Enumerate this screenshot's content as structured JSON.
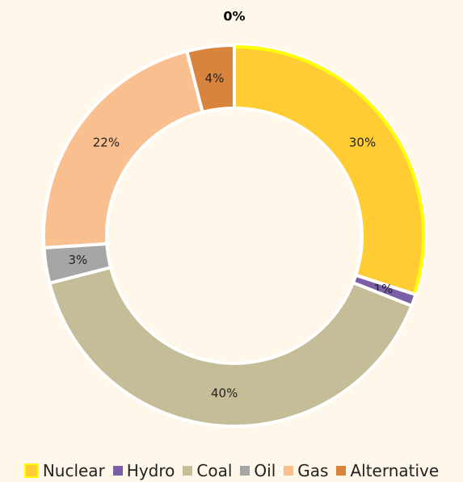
{
  "chart_data": {
    "type": "donut",
    "categories": [
      "Nuclear",
      "Hydro",
      "Coal",
      "Oil",
      "Gas",
      "Alternative",
      null
    ],
    "values": [
      30,
      1,
      40,
      3,
      22,
      4,
      0
    ],
    "value_labels": [
      "30%",
      "1%",
      "40%",
      "3%",
      "22%",
      "4%",
      "0%"
    ],
    "colors": [
      "#ffcd33",
      "#7a5fa8",
      "#c5bd98",
      "#a6a6a6",
      "#f9bf8f",
      "#d9843d",
      null
    ],
    "highlight": "Nuclear"
  }
}
